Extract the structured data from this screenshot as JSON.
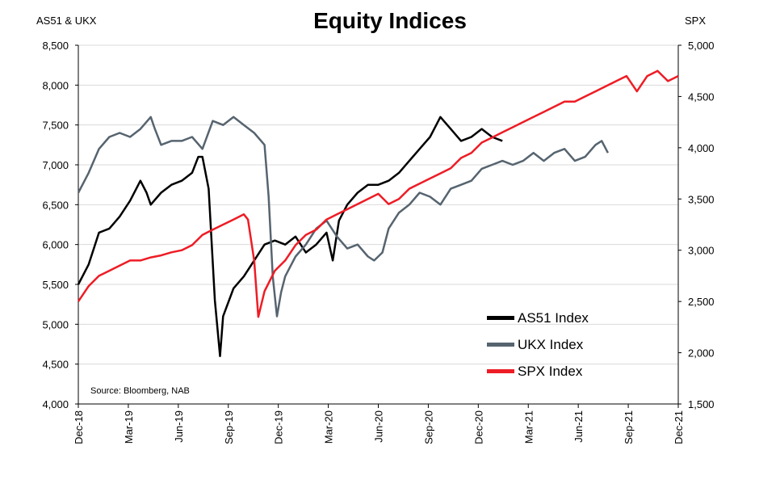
{
  "chart_data": {
    "type": "line",
    "title": "Equity Indices",
    "left_axis_label": "AS51 & UKX",
    "right_axis_label": "SPX",
    "source": "Source: Bloomberg, NAB",
    "left_ylim": [
      4000,
      8500
    ],
    "left_ticks": [
      "4,000",
      "4,500",
      "5,000",
      "5,500",
      "6,000",
      "6,500",
      "7,000",
      "7,500",
      "8,000",
      "8,500"
    ],
    "right_ylim": [
      1500,
      5000
    ],
    "right_ticks": [
      "1,500",
      "2,000",
      "2,500",
      "3,000",
      "3,500",
      "4,000",
      "4,500",
      "5,000"
    ],
    "x_ticks": [
      "Dec-18",
      "Mar-19",
      "Jun-19",
      "Sep-19",
      "Dec-19",
      "Mar-20",
      "Jun-20",
      "Sep-20",
      "Dec-20",
      "Mar-21",
      "Jun-21",
      "Sep-21",
      "Dec-21"
    ],
    "grid": true,
    "legend_position": "bottom-right",
    "series": [
      {
        "name": "AS51 Index",
        "axis": "left",
        "color": "#000000",
        "points": [
          [
            0,
            5500
          ],
          [
            0.5,
            5750
          ],
          [
            1,
            6150
          ],
          [
            1.5,
            6200
          ],
          [
            2,
            6350
          ],
          [
            2.5,
            6550
          ],
          [
            3,
            6800
          ],
          [
            3.3,
            6650
          ],
          [
            3.5,
            6500
          ],
          [
            4,
            6650
          ],
          [
            4.5,
            6750
          ],
          [
            5,
            6800
          ],
          [
            5.5,
            6900
          ],
          [
            5.8,
            7100
          ],
          [
            6,
            7100
          ],
          [
            6.3,
            6700
          ],
          [
            6.6,
            5300
          ],
          [
            6.85,
            4600
          ],
          [
            7,
            5100
          ],
          [
            7.5,
            5450
          ],
          [
            8,
            5600
          ],
          [
            8.5,
            5800
          ],
          [
            9,
            6000
          ],
          [
            9.5,
            6050
          ],
          [
            10,
            6000
          ],
          [
            10.5,
            6100
          ],
          [
            11,
            5900
          ],
          [
            11.5,
            6000
          ],
          [
            12,
            6150
          ],
          [
            12.3,
            5800
          ],
          [
            12.6,
            6300
          ],
          [
            13,
            6500
          ],
          [
            13.5,
            6650
          ],
          [
            14,
            6750
          ],
          [
            14.5,
            6750
          ],
          [
            15,
            6800
          ],
          [
            15.5,
            6900
          ],
          [
            16,
            7050
          ],
          [
            16.5,
            7200
          ],
          [
            17,
            7350
          ],
          [
            17.5,
            7600
          ],
          [
            18,
            7450
          ],
          [
            18.5,
            7300
          ],
          [
            19,
            7350
          ],
          [
            19.5,
            7450
          ],
          [
            20,
            7350
          ],
          [
            20.5,
            7300
          ]
        ]
      },
      {
        "name": "UKX Index",
        "axis": "left",
        "color": "#56646f",
        "points": [
          [
            0,
            6650
          ],
          [
            0.5,
            6900
          ],
          [
            1,
            7200
          ],
          [
            1.5,
            7350
          ],
          [
            2,
            7400
          ],
          [
            2.5,
            7350
          ],
          [
            3,
            7450
          ],
          [
            3.5,
            7600
          ],
          [
            3.7,
            7450
          ],
          [
            4,
            7250
          ],
          [
            4.5,
            7300
          ],
          [
            5,
            7300
          ],
          [
            5.5,
            7350
          ],
          [
            6,
            7200
          ],
          [
            6.5,
            7550
          ],
          [
            7,
            7500
          ],
          [
            7.5,
            7600
          ],
          [
            8,
            7500
          ],
          [
            8.5,
            7400
          ],
          [
            9,
            7250
          ],
          [
            9.2,
            6600
          ],
          [
            9.4,
            5600
          ],
          [
            9.6,
            5100
          ],
          [
            9.8,
            5400
          ],
          [
            10,
            5600
          ],
          [
            10.5,
            5850
          ],
          [
            11,
            6000
          ],
          [
            11.5,
            6200
          ],
          [
            12,
            6300
          ],
          [
            12.5,
            6100
          ],
          [
            13,
            5950
          ],
          [
            13.5,
            6000
          ],
          [
            14,
            5850
          ],
          [
            14.3,
            5800
          ],
          [
            14.7,
            5900
          ],
          [
            15,
            6200
          ],
          [
            15.5,
            6400
          ],
          [
            16,
            6500
          ],
          [
            16.5,
            6650
          ],
          [
            17,
            6600
          ],
          [
            17.5,
            6500
          ],
          [
            18,
            6700
          ],
          [
            18.5,
            6750
          ],
          [
            19,
            6800
          ],
          [
            19.5,
            6950
          ],
          [
            20,
            7000
          ],
          [
            20.5,
            7050
          ],
          [
            21,
            7000
          ],
          [
            21.5,
            7050
          ],
          [
            22,
            7150
          ],
          [
            22.5,
            7050
          ],
          [
            23,
            7150
          ],
          [
            23.5,
            7200
          ],
          [
            24,
            7050
          ],
          [
            24.5,
            7100
          ],
          [
            25,
            7250
          ],
          [
            25.3,
            7300
          ],
          [
            25.6,
            7150
          ]
        ]
      },
      {
        "name": "SPX Index",
        "axis": "right",
        "color": "#ee1c25",
        "points": [
          [
            0,
            2500
          ],
          [
            0.5,
            2650
          ],
          [
            1,
            2750
          ],
          [
            1.5,
            2800
          ],
          [
            2,
            2850
          ],
          [
            2.5,
            2900
          ],
          [
            3,
            2900
          ],
          [
            3.5,
            2930
          ],
          [
            4,
            2950
          ],
          [
            4.5,
            2980
          ],
          [
            5,
            3000
          ],
          [
            5.5,
            3050
          ],
          [
            6,
            3150
          ],
          [
            6.5,
            3200
          ],
          [
            7,
            3250
          ],
          [
            7.5,
            3300
          ],
          [
            8,
            3350
          ],
          [
            8.2,
            3300
          ],
          [
            8.5,
            2900
          ],
          [
            8.7,
            2350
          ],
          [
            9,
            2600
          ],
          [
            9.5,
            2800
          ],
          [
            10,
            2900
          ],
          [
            10.5,
            3050
          ],
          [
            11,
            3150
          ],
          [
            11.5,
            3200
          ],
          [
            12,
            3300
          ],
          [
            12.5,
            3350
          ],
          [
            13,
            3400
          ],
          [
            13.5,
            3450
          ],
          [
            14,
            3500
          ],
          [
            14.5,
            3550
          ],
          [
            15,
            3450
          ],
          [
            15.5,
            3500
          ],
          [
            16,
            3600
          ],
          [
            16.5,
            3650
          ],
          [
            17,
            3700
          ],
          [
            17.5,
            3750
          ],
          [
            18,
            3800
          ],
          [
            18.5,
            3900
          ],
          [
            19,
            3950
          ],
          [
            19.5,
            4050
          ],
          [
            20,
            4100
          ],
          [
            20.5,
            4150
          ],
          [
            21,
            4200
          ],
          [
            21.5,
            4250
          ],
          [
            22,
            4300
          ],
          [
            22.5,
            4350
          ],
          [
            23,
            4400
          ],
          [
            23.5,
            4450
          ],
          [
            24,
            4450
          ],
          [
            24.5,
            4500
          ],
          [
            25,
            4550
          ],
          [
            25.5,
            4600
          ],
          [
            26,
            4650
          ],
          [
            26.5,
            4700
          ],
          [
            27,
            4550
          ],
          [
            27.5,
            4700
          ],
          [
            28,
            4750
          ],
          [
            28.5,
            4650
          ],
          [
            29,
            4700
          ]
        ]
      }
    ]
  }
}
